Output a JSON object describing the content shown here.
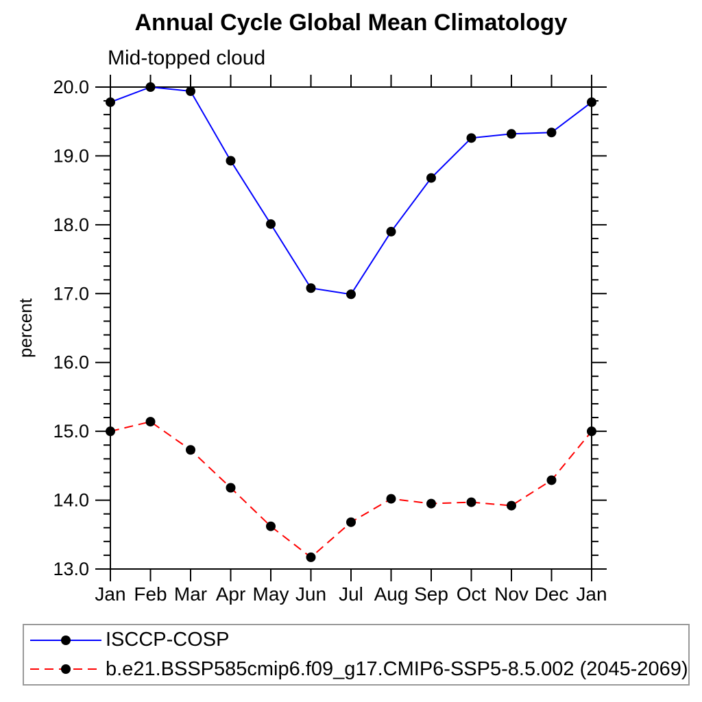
{
  "page": {
    "background": "#ffffff"
  },
  "header": {
    "title": "Annual Cycle Global Mean Climatology",
    "subtitle": "Mid-topped cloud"
  },
  "chart_data": {
    "type": "line",
    "title": "Annual Cycle Global Mean Climatology",
    "subtitle": "Mid-topped cloud",
    "xlabel": "",
    "ylabel": "percent",
    "categories": [
      "Jan",
      "Feb",
      "Mar",
      "Apr",
      "May",
      "Jun",
      "Jul",
      "Aug",
      "Sep",
      "Oct",
      "Nov",
      "Dec",
      "Jan"
    ],
    "ylim": [
      13.0,
      20.0
    ],
    "ytick_interval": 1.0,
    "yminor_interval": 0.2,
    "ytick_labels": [
      "13.0",
      "14.0",
      "15.0",
      "16.0",
      "17.0",
      "18.0",
      "19.0",
      "20.0"
    ],
    "grid": false,
    "legend_position": "bottom-left",
    "axis_color": "#000000",
    "marker": "filled-circle",
    "marker_color": "#000000",
    "series": [
      {
        "name": "ISCCP-COSP",
        "color": "#0000ff",
        "line_style": "solid",
        "values": [
          19.78,
          20.0,
          19.94,
          18.93,
          18.01,
          17.08,
          16.99,
          17.9,
          18.68,
          19.26,
          19.32,
          19.34,
          19.78
        ]
      },
      {
        "name": "b.e21.BSSP585cmip6.f09_g17.CMIP6-SSP5-8.5.002 (2045-2069)",
        "color": "#ff0000",
        "line_style": "dashed",
        "values": [
          15.0,
          15.14,
          14.73,
          14.18,
          13.62,
          13.17,
          13.68,
          14.02,
          13.95,
          13.97,
          13.92,
          14.29,
          15.0
        ]
      }
    ]
  }
}
